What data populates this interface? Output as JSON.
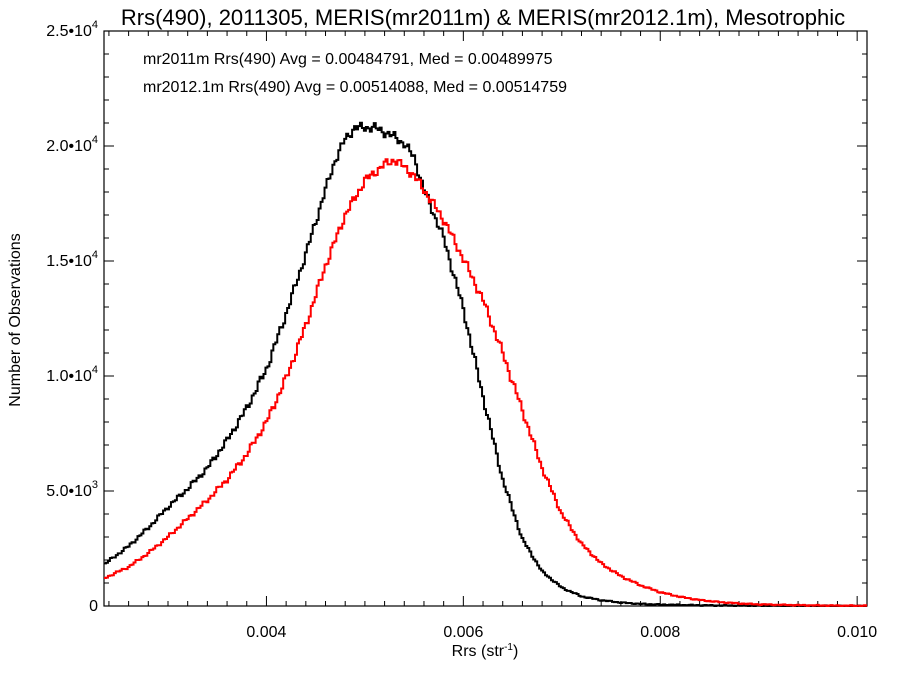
{
  "chart_data": {
    "type": "line",
    "title": "Rrs(490), 2011305, MERIS(mr2011m) & MERIS(mr2012.1m), Mesotrophic",
    "xlabel": "Rrs (str",
    "xlabel_sup": "-1",
    "xlabel_close": ")",
    "ylabel": "Number of Observations",
    "xlim": [
      0.00235,
      0.0101
    ],
    "ylim": [
      0,
      25000
    ],
    "x_ticks": [
      {
        "value": 0.004,
        "label": "0.004"
      },
      {
        "value": 0.006,
        "label": "0.006"
      },
      {
        "value": 0.008,
        "label": "0.008"
      },
      {
        "value": 0.01,
        "label": "0.010"
      }
    ],
    "y_ticks": [
      {
        "value": 0,
        "mant": "0",
        "exp": ""
      },
      {
        "value": 5000,
        "mant": "5.0•10",
        "exp": "3"
      },
      {
        "value": 10000,
        "mant": "1.0•10",
        "exp": "4"
      },
      {
        "value": 15000,
        "mant": "1.5•10",
        "exp": "4"
      },
      {
        "value": 20000,
        "mant": "2.0•10",
        "exp": "4"
      },
      {
        "value": 25000,
        "mant": "2.5•10",
        "exp": "4"
      }
    ],
    "legend_placement": "top-left",
    "grid": false,
    "series": [
      {
        "name": "mr2011m",
        "color": "#000000",
        "legend": "mr2011m Rrs(490) Avg = 0.00484791, Med = 0.00489975",
        "points": [
          [
            0.00235,
            1800
          ],
          [
            0.0026,
            2600
          ],
          [
            0.0028,
            3400
          ],
          [
            0.003,
            4300
          ],
          [
            0.0032,
            5100
          ],
          [
            0.0034,
            6000
          ],
          [
            0.0036,
            7200
          ],
          [
            0.0038,
            8600
          ],
          [
            0.004,
            10300
          ],
          [
            0.0042,
            12700
          ],
          [
            0.0044,
            15300
          ],
          [
            0.0046,
            18100
          ],
          [
            0.0047,
            19400
          ],
          [
            0.0048,
            20300
          ],
          [
            0.0049,
            20800
          ],
          [
            0.005,
            20800
          ],
          [
            0.0051,
            20800
          ],
          [
            0.0052,
            20600
          ],
          [
            0.0053,
            20400
          ],
          [
            0.0054,
            20100
          ],
          [
            0.0055,
            19500
          ],
          [
            0.0056,
            18100
          ],
          [
            0.0058,
            16000
          ],
          [
            0.006,
            12900
          ],
          [
            0.0062,
            9100
          ],
          [
            0.0064,
            5500
          ],
          [
            0.0066,
            2900
          ],
          [
            0.0068,
            1500
          ],
          [
            0.007,
            800
          ],
          [
            0.0072,
            420
          ],
          [
            0.0074,
            250
          ],
          [
            0.0076,
            150
          ],
          [
            0.0078,
            90
          ],
          [
            0.008,
            60
          ],
          [
            0.0084,
            30
          ],
          [
            0.0088,
            15
          ],
          [
            0.0092,
            8
          ],
          [
            0.0096,
            4
          ],
          [
            0.0101,
            2
          ]
        ]
      },
      {
        "name": "mr2012.1m",
        "color": "#ff0000",
        "legend": "mr2012.1m Rrs(490) Avg = 0.00514088, Med = 0.00514759",
        "points": [
          [
            0.00235,
            1200
          ],
          [
            0.0026,
            1700
          ],
          [
            0.0028,
            2300
          ],
          [
            0.003,
            3000
          ],
          [
            0.0032,
            3800
          ],
          [
            0.0034,
            4600
          ],
          [
            0.0036,
            5500
          ],
          [
            0.0038,
            6600
          ],
          [
            0.004,
            8000
          ],
          [
            0.0042,
            9900
          ],
          [
            0.0044,
            12200
          ],
          [
            0.0046,
            14800
          ],
          [
            0.0048,
            17000
          ],
          [
            0.005,
            18500
          ],
          [
            0.0052,
            19200
          ],
          [
            0.0053,
            19400
          ],
          [
            0.0054,
            19100
          ],
          [
            0.0055,
            18700
          ],
          [
            0.0056,
            18100
          ],
          [
            0.0058,
            16800
          ],
          [
            0.006,
            15100
          ],
          [
            0.0062,
            13300
          ],
          [
            0.0064,
            11000
          ],
          [
            0.0066,
            8500
          ],
          [
            0.0068,
            6000
          ],
          [
            0.007,
            4000
          ],
          [
            0.0072,
            2700
          ],
          [
            0.0074,
            1850
          ],
          [
            0.0076,
            1300
          ],
          [
            0.0078,
            900
          ],
          [
            0.008,
            600
          ],
          [
            0.0082,
            400
          ],
          [
            0.0084,
            260
          ],
          [
            0.0086,
            170
          ],
          [
            0.0088,
            110
          ],
          [
            0.009,
            70
          ],
          [
            0.0094,
            35
          ],
          [
            0.0098,
            15
          ],
          [
            0.0101,
            8
          ]
        ]
      }
    ]
  }
}
